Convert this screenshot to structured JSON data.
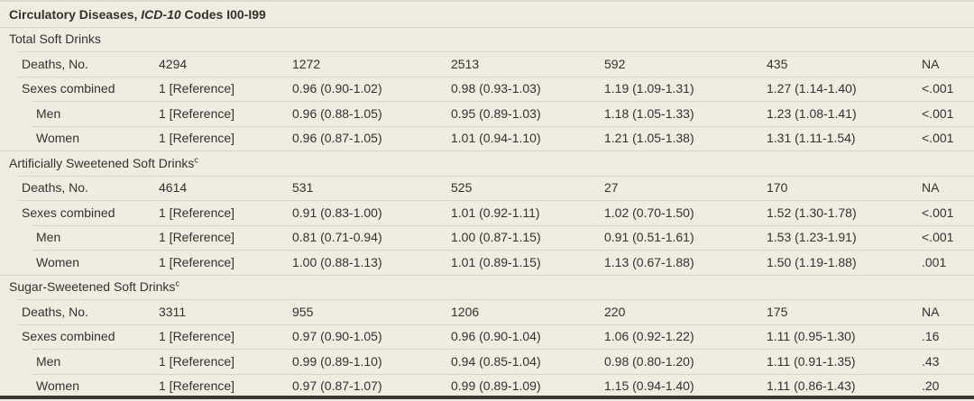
{
  "colors": {
    "background": "#f0ece2",
    "text": "#34322d",
    "separator": "#d7d3c7",
    "top-rule": "#dcd8cc",
    "bottom-rule": "#3b3934"
  },
  "title": {
    "text_before": "Circulatory Diseases, ",
    "italic_text": "ICD-10",
    "text_after": " Codes I00-I99"
  },
  "sections": [
    {
      "name": "Total Soft Drinks",
      "footnote_mark": "",
      "rows": [
        {
          "label": "Deaths, No.",
          "indent": 1,
          "values": [
            "4294",
            "1272",
            "2513",
            "592",
            "435",
            "NA"
          ]
        },
        {
          "label": "Sexes combined",
          "indent": 1,
          "values": [
            "1 [Reference]",
            "0.96 (0.90-1.02)",
            "0.98 (0.93-1.03)",
            "1.19 (1.09-1.31)",
            "1.27 (1.14-1.40)",
            "<.001"
          ]
        },
        {
          "label": "Men",
          "indent": 2,
          "values": [
            "1 [Reference]",
            "0.96 (0.88-1.05)",
            "0.95 (0.89-1.03)",
            "1.18 (1.05-1.33)",
            "1.23 (1.08-1.41)",
            "<.001"
          ]
        },
        {
          "label": "Women",
          "indent": 2,
          "values": [
            "1 [Reference]",
            "0.96 (0.87-1.05)",
            "1.01 (0.94-1.10)",
            "1.21 (1.05-1.38)",
            "1.31 (1.11-1.54)",
            "<.001"
          ]
        }
      ]
    },
    {
      "name": "Artificially Sweetened Soft Drinks",
      "footnote_mark": "c",
      "rows": [
        {
          "label": "Deaths, No.",
          "indent": 1,
          "values": [
            "4614",
            "531",
            "525",
            "27",
            "170",
            "NA"
          ]
        },
        {
          "label": "Sexes combined",
          "indent": 1,
          "values": [
            "1 [Reference]",
            "0.91 (0.83-1.00)",
            "1.01 (0.92-1.11)",
            "1.02 (0.70-1.50)",
            "1.52 (1.30-1.78)",
            "<.001"
          ]
        },
        {
          "label": "Men",
          "indent": 2,
          "values": [
            "1 [Reference]",
            "0.81 (0.71-0.94)",
            "1.00 (0.87-1.15)",
            "0.91 (0.51-1.61)",
            "1.53 (1.23-1.91)",
            "<.001"
          ]
        },
        {
          "label": "Women",
          "indent": 2,
          "values": [
            "1 [Reference]",
            "1.00 (0.88-1.13)",
            "1.01 (0.89-1.15)",
            "1.13 (0.67-1.88)",
            "1.50 (1.19-1.88)",
            ".001"
          ]
        }
      ]
    },
    {
      "name": "Sugar-Sweetened Soft Drinks",
      "footnote_mark": "c",
      "rows": [
        {
          "label": "Deaths, No.",
          "indent": 1,
          "values": [
            "3311",
            "955",
            "1206",
            "220",
            "175",
            "NA"
          ]
        },
        {
          "label": "Sexes combined",
          "indent": 1,
          "values": [
            "1 [Reference]",
            "0.97 (0.90-1.05)",
            "0.96 (0.90-1.04)",
            "1.06 (0.92-1.22)",
            "1.11 (0.95-1.30)",
            ".16"
          ]
        },
        {
          "label": "Men",
          "indent": 2,
          "values": [
            "1 [Reference]",
            "0.99 (0.89-1.10)",
            "0.94 (0.85-1.04)",
            "0.98 (0.80-1.20)",
            "1.11 (0.91-1.35)",
            ".43"
          ]
        },
        {
          "label": "Women",
          "indent": 2,
          "values": [
            "1 [Reference]",
            "0.97 (0.87-1.07)",
            "0.99 (0.89-1.09)",
            "1.15 (0.94-1.40)",
            "1.11 (0.86-1.43)",
            ".20"
          ]
        }
      ]
    }
  ]
}
